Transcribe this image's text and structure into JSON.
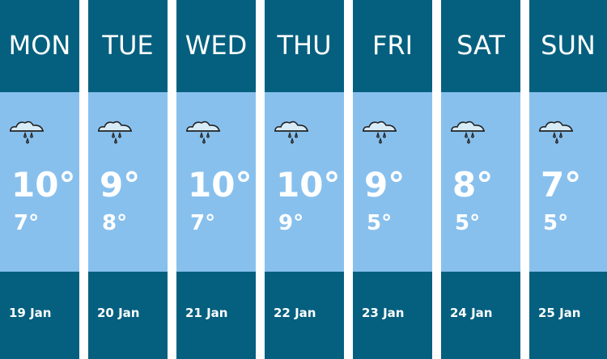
{
  "days": [
    {
      "day": "MON",
      "icon": "rain-cloud-icon",
      "high": "10°",
      "low": "7°",
      "date": "19 Jan"
    },
    {
      "day": "TUE",
      "icon": "rain-cloud-icon",
      "high": "9°",
      "low": "8°",
      "date": "20 Jan"
    },
    {
      "day": "WED",
      "icon": "rain-cloud-icon",
      "high": "10°",
      "low": "7°",
      "date": "21 Jan"
    },
    {
      "day": "THU",
      "icon": "rain-cloud-icon",
      "high": "10°",
      "low": "9°",
      "date": "22 Jan"
    },
    {
      "day": "FRI",
      "icon": "rain-cloud-icon",
      "high": "9°",
      "low": "5°",
      "date": "23 Jan"
    },
    {
      "day": "SAT",
      "icon": "rain-cloud-icon",
      "high": "8°",
      "low": "5°",
      "date": "24 Jan"
    },
    {
      "day": "SUN",
      "icon": "rain-cloud-icon",
      "high": "7°",
      "low": "5°",
      "date": "25 Jan"
    }
  ],
  "colors": {
    "header": "#05607f",
    "body": "#88c0ed",
    "text": "#ffffff"
  }
}
